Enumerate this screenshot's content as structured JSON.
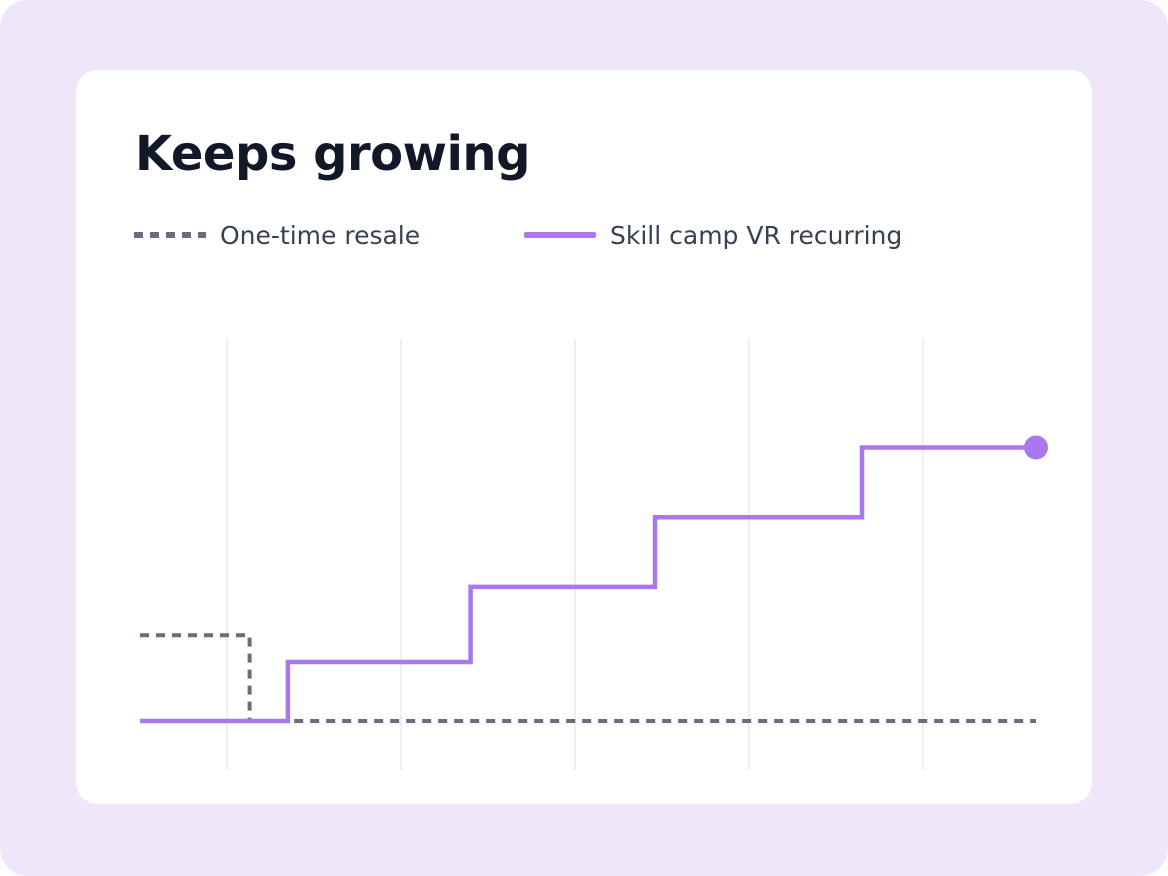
{
  "chart_data": {
    "type": "line",
    "title": "Keeps growing",
    "xlabel": "",
    "ylabel": "",
    "step": true,
    "grid": {
      "vertical": true,
      "horizontal": false
    },
    "legend_placement": "top-left",
    "xlim": [
      0,
      5.15
    ],
    "ylim": [
      0,
      5.5
    ],
    "series": [
      {
        "name": "One-time resale",
        "style": "dashed",
        "color": "#6b6b7b",
        "points": [
          [
            0,
            1.6
          ],
          [
            0.63,
            1.6
          ],
          [
            0.63,
            0
          ],
          [
            5.15,
            0
          ]
        ]
      },
      {
        "name": "Skill camp VR recurring",
        "style": "solid",
        "color": "#a978ee",
        "endpoint_marker": true,
        "points": [
          [
            0,
            0
          ],
          [
            0.85,
            0
          ],
          [
            0.85,
            1.1
          ],
          [
            1.9,
            1.1
          ],
          [
            1.9,
            2.5
          ],
          [
            2.96,
            2.5
          ],
          [
            2.96,
            3.8
          ],
          [
            4.15,
            3.8
          ],
          [
            4.15,
            5.1
          ],
          [
            5.15,
            5.1
          ]
        ]
      }
    ],
    "vertical_gridlines_x": [
      0.5,
      1.5,
      2.5,
      3.5,
      4.5
    ]
  },
  "colors": {
    "background": "#efe6fa",
    "card": "#ffffff",
    "grid": "#e8e8ee",
    "title": "#111827",
    "legend_text": "#374151"
  }
}
